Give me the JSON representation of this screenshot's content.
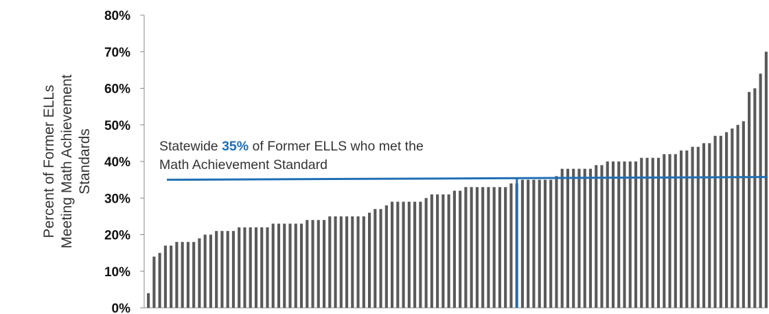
{
  "chart_data": {
    "type": "bar",
    "title": "",
    "ylabel_lines": [
      "Percent of Former ELLs",
      "Meeting Math Achievement",
      "Standards"
    ],
    "ylim": [
      0,
      80
    ],
    "yticks": [
      0,
      10,
      20,
      30,
      40,
      50,
      60,
      70,
      80
    ],
    "ytick_labels": [
      "0%",
      "10%",
      "20%",
      "30%",
      "40%",
      "50%",
      "60%",
      "70%",
      "80%"
    ],
    "grid": false,
    "bar_color": "#595959",
    "reference_line": {
      "value": 35,
      "color": "#1f6fb5",
      "highlight_color": "#1f6fb5",
      "annotation": {
        "line1_prefix": "Statewide ",
        "line1_highlight": "35%",
        "line1_suffix": " of Former ELLS who met the",
        "line2": "Math Achievement Standard"
      }
    },
    "values": [
      4,
      14,
      15,
      17,
      17,
      18,
      18,
      18,
      18,
      19,
      20,
      20,
      21,
      21,
      21,
      21,
      22,
      22,
      22,
      22,
      22,
      22,
      23,
      23,
      23,
      23,
      23,
      23,
      24,
      24,
      24,
      24,
      25,
      25,
      25,
      25,
      25,
      25,
      25,
      26,
      27,
      27,
      28,
      29,
      29,
      29,
      29,
      29,
      29,
      30,
      31,
      31,
      31,
      31,
      32,
      32,
      33,
      33,
      33,
      33,
      33,
      33,
      33,
      33,
      34,
      34,
      35,
      35,
      35,
      35,
      35,
      35,
      36,
      38,
      38,
      38,
      38,
      38,
      38,
      39,
      39,
      40,
      40,
      40,
      40,
      40,
      40,
      41,
      41,
      41,
      41,
      42,
      42,
      42,
      43,
      43,
      44,
      44,
      45,
      45,
      47,
      47,
      48,
      49,
      50,
      51,
      59,
      60,
      64,
      70
    ]
  }
}
